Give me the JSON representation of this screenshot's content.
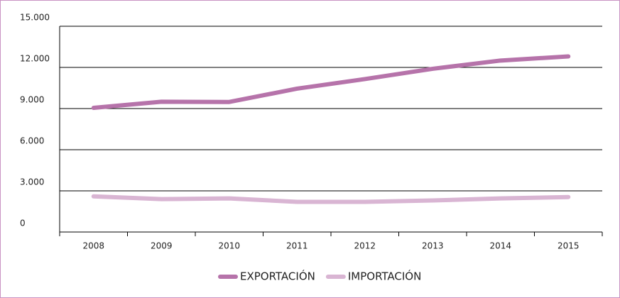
{
  "chart_data": {
    "type": "line",
    "categories": [
      "2008",
      "2009",
      "2010",
      "2011",
      "2012",
      "2013",
      "2014",
      "2015"
    ],
    "series": [
      {
        "name": "EXPORTACIÓN",
        "color": "#b673aa",
        "values": [
          9050,
          9500,
          9480,
          10450,
          11150,
          11900,
          12500,
          12800
        ]
      },
      {
        "name": "IMPORTACIÓN",
        "color": "#d9b5d3",
        "values": [
          2600,
          2400,
          2450,
          2200,
          2200,
          2300,
          2450,
          2550
        ]
      }
    ],
    "ylim": [
      0,
      15000
    ],
    "yticks": [
      0,
      {
        "value": 3000,
        "label": "3.000"
      },
      {
        "value": 6000,
        "label": "6.000"
      },
      {
        "value": 9000,
        "label": "9.000"
      },
      {
        "value": 12000,
        "label": "12.000"
      },
      {
        "value": 15000,
        "label": "15.000"
      }
    ],
    "grid": true,
    "legend": "bottom"
  }
}
